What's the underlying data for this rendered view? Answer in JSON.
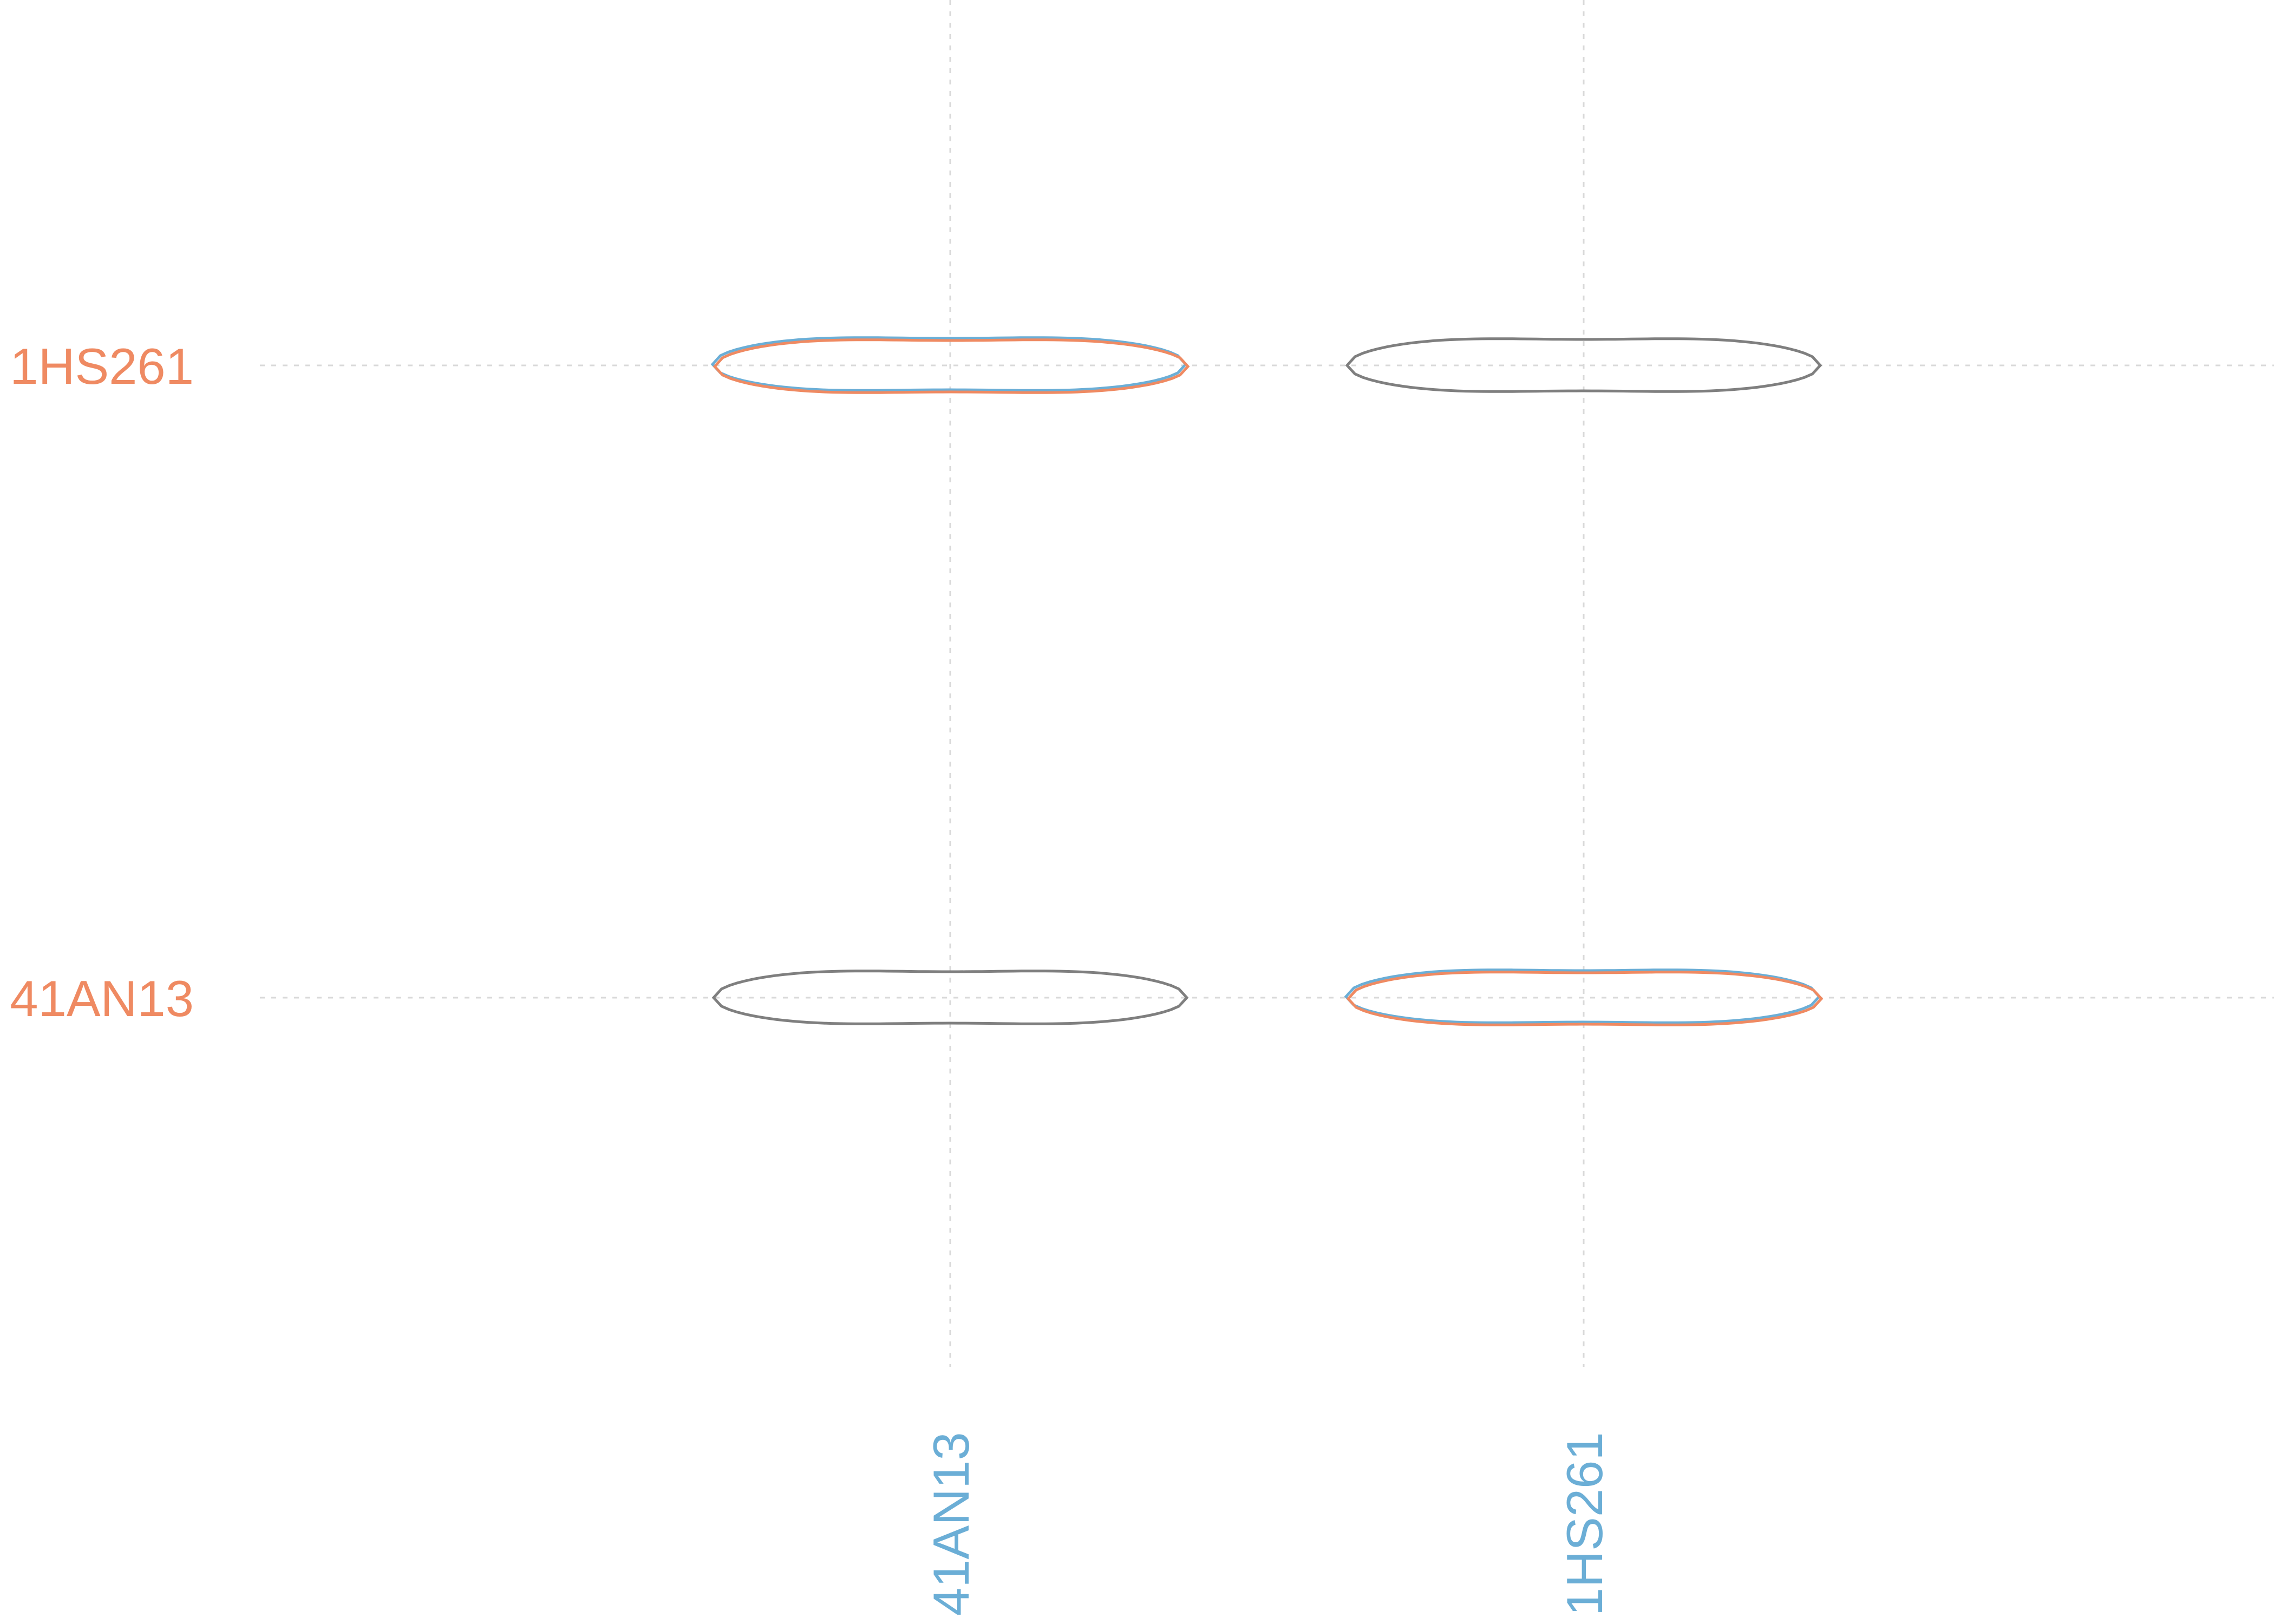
{
  "chart_data": {
    "type": "violin",
    "x_categories": [
      "41AN13",
      "1HS261"
    ],
    "y_categories": [
      "41AN13",
      "1HS261"
    ],
    "x_label_color": "#6baed6",
    "y_label_color": "#ef8a62",
    "neutral_color": "#7f7f7f",
    "grid": true,
    "cells": [
      {
        "x": "41AN13",
        "y": "1HS261",
        "style": "overlay",
        "colors": [
          "#6baed6",
          "#ef8a62"
        ]
      },
      {
        "x": "1HS261",
        "y": "1HS261",
        "style": "single",
        "colors": [
          "#7f7f7f"
        ]
      },
      {
        "x": "41AN13",
        "y": "41AN13",
        "style": "single",
        "colors": [
          "#7f7f7f"
        ]
      },
      {
        "x": "1HS261",
        "y": "41AN13",
        "style": "overlay",
        "colors": [
          "#6baed6",
          "#ef8a62"
        ]
      }
    ]
  }
}
